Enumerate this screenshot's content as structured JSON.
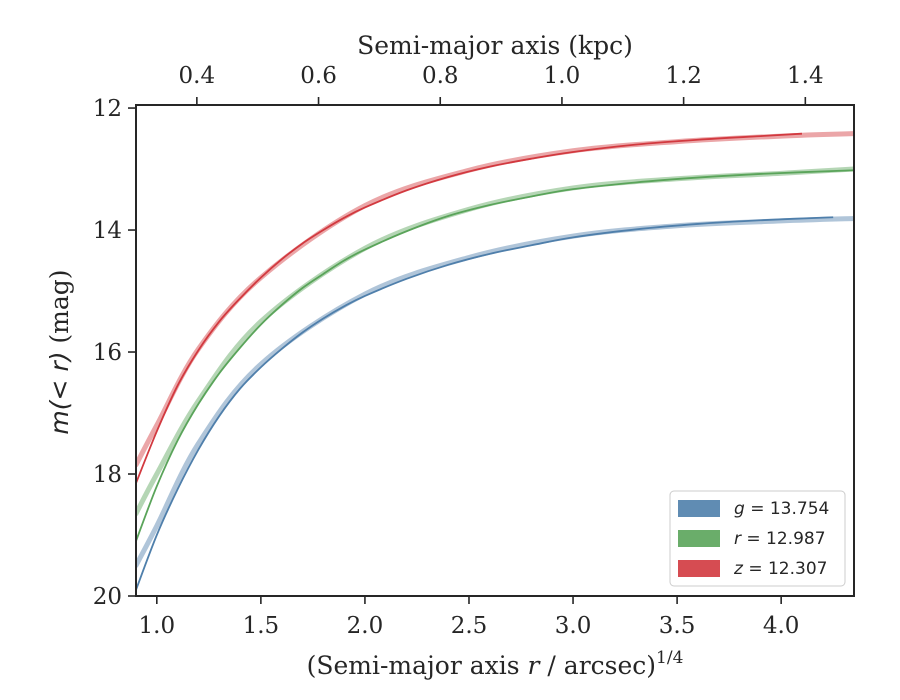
{
  "chart_data": {
    "type": "line",
    "xlabel": "(Semi-major axis r / arcsec)1/4",
    "xlabel_parts": {
      "pre": "(Semi-major axis ",
      "var": "r",
      "post": " / arcsec)",
      "sup": "1/4"
    },
    "x2label": "Semi-major axis (kpc)",
    "ylabel": "m(<r) (mag)",
    "ylabel_parts": {
      "math": "m(< r)",
      "unit": " (mag)"
    },
    "xlim": [
      0.9,
      4.35
    ],
    "ylim": [
      20.0,
      11.95
    ],
    "y_inverted": true,
    "x2lim": [
      0.3,
      1.48
    ],
    "xticks": [
      1.0,
      1.5,
      2.0,
      2.5,
      3.0,
      3.5,
      4.0
    ],
    "xtick_labels": [
      "1.0",
      "1.5",
      "2.0",
      "2.5",
      "3.0",
      "3.5",
      "4.0"
    ],
    "x2ticks": [
      0.4,
      0.6,
      0.8,
      1.0,
      1.2,
      1.4
    ],
    "x2tick_labels": [
      "0.4",
      "0.6",
      "0.8",
      "1.0",
      "1.2",
      "1.4"
    ],
    "yticks": [
      12,
      14,
      16,
      18,
      20
    ],
    "ytick_labels": [
      "12",
      "14",
      "16",
      "18",
      "20"
    ],
    "grid": false,
    "legend": {
      "placement": "lower-right"
    },
    "series": [
      {
        "name": "g = 13.754",
        "label_var": "g",
        "label_value": "13.754",
        "color": "#4f7fab",
        "x": [
          0.9,
          1.0,
          1.1,
          1.2,
          1.3,
          1.4,
          1.5,
          1.6,
          1.7,
          1.8,
          1.9,
          2.0,
          2.2,
          2.4,
          2.6,
          2.8,
          3.0,
          3.3,
          3.6,
          3.9,
          4.25
        ],
        "y": [
          19.9,
          19.0,
          18.25,
          17.6,
          17.05,
          16.6,
          16.25,
          15.95,
          15.68,
          15.45,
          15.25,
          15.08,
          14.8,
          14.57,
          14.39,
          14.25,
          14.12,
          13.99,
          13.9,
          13.84,
          13.79
        ],
        "band_x": [
          0.9,
          1.0,
          1.2,
          1.5,
          2.0,
          2.5,
          3.0,
          3.5,
          4.0,
          4.35
        ],
        "band_y": [
          19.5,
          18.85,
          17.5,
          16.2,
          15.05,
          14.45,
          14.1,
          13.93,
          13.85,
          13.81
        ]
      },
      {
        "name": "r = 12.987",
        "label_var": "r",
        "label_value": "12.987",
        "color": "#5aa45a",
        "x": [
          0.9,
          1.0,
          1.1,
          1.2,
          1.3,
          1.4,
          1.5,
          1.6,
          1.7,
          1.8,
          1.9,
          2.0,
          2.2,
          2.4,
          2.6,
          2.8,
          3.0,
          3.3,
          3.6,
          3.9,
          4.35
        ],
        "y": [
          19.1,
          18.2,
          17.45,
          16.85,
          16.35,
          15.93,
          15.55,
          15.23,
          14.95,
          14.72,
          14.5,
          14.32,
          14.02,
          13.77,
          13.59,
          13.45,
          13.33,
          13.22,
          13.14,
          13.08,
          13.02
        ],
        "band_x": [
          0.9,
          1.0,
          1.2,
          1.5,
          2.0,
          2.5,
          3.0,
          3.5,
          4.0,
          4.35
        ],
        "band_y": [
          18.65,
          18.0,
          16.8,
          15.5,
          14.3,
          13.66,
          13.31,
          13.16,
          13.07,
          13.0
        ]
      },
      {
        "name": "z = 12.307",
        "label_var": "z",
        "label_value": "12.307",
        "color": "#d2393f",
        "x": [
          0.9,
          1.0,
          1.1,
          1.2,
          1.3,
          1.4,
          1.5,
          1.6,
          1.7,
          1.8,
          1.9,
          2.0,
          2.2,
          2.4,
          2.6,
          2.8,
          3.0,
          3.3,
          3.6,
          3.9,
          4.1
        ],
        "y": [
          18.15,
          17.3,
          16.55,
          15.97,
          15.5,
          15.12,
          14.78,
          14.48,
          14.22,
          14.0,
          13.8,
          13.63,
          13.35,
          13.13,
          12.96,
          12.83,
          12.72,
          12.6,
          12.52,
          12.46,
          12.42
        ],
        "band_x": [
          0.9,
          1.0,
          1.2,
          1.5,
          2.0,
          2.5,
          3.0,
          3.5,
          4.0,
          4.35
        ],
        "band_y": [
          17.85,
          17.2,
          15.95,
          14.78,
          13.6,
          13.02,
          12.7,
          12.55,
          12.46,
          12.42
        ]
      }
    ]
  }
}
